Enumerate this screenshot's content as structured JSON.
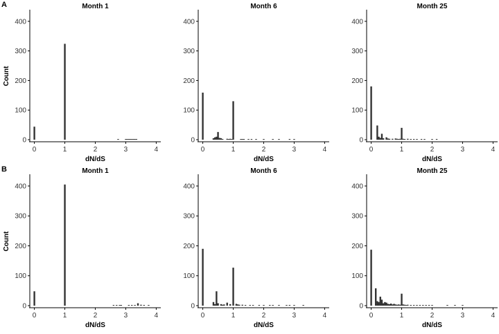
{
  "panel_labels": [
    "A",
    "B"
  ],
  "chart_data": [
    {
      "type": "bar",
      "row": "A",
      "col": 0,
      "title": "Month 1",
      "xlabel": "dN/dS",
      "ylabel": "Count",
      "xlim": [
        -0.15,
        4.15
      ],
      "ylim": [
        0,
        430
      ],
      "xticks": [
        "0",
        "1",
        "2",
        "3",
        "4"
      ],
      "yticks": [
        "0",
        "100",
        "200",
        "300",
        "400"
      ],
      "bins": [
        {
          "x": 0.0,
          "y": 44
        },
        {
          "x": 1.0,
          "y": 324
        },
        {
          "x": 2.75,
          "y": 1
        },
        {
          "x": 3.0,
          "y": 1
        },
        {
          "x": 3.05,
          "y": 1
        },
        {
          "x": 3.1,
          "y": 1
        },
        {
          "x": 3.15,
          "y": 1
        },
        {
          "x": 3.2,
          "y": 2
        },
        {
          "x": 3.25,
          "y": 2
        },
        {
          "x": 3.3,
          "y": 2
        },
        {
          "x": 3.35,
          "y": 2
        }
      ]
    },
    {
      "type": "bar",
      "row": "A",
      "col": 1,
      "title": "Month 6",
      "xlabel": "dN/dS",
      "ylabel": "",
      "xlim": [
        -0.15,
        4.15
      ],
      "ylim": [
        0,
        430
      ],
      "xticks": [
        "0",
        "1",
        "2",
        "3",
        "4"
      ],
      "yticks": [
        "0",
        "100",
        "200",
        "300",
        "400"
      ],
      "bins": [
        {
          "x": 0.0,
          "y": 159
        },
        {
          "x": 0.35,
          "y": 5
        },
        {
          "x": 0.4,
          "y": 8
        },
        {
          "x": 0.45,
          "y": 10
        },
        {
          "x": 0.5,
          "y": 26
        },
        {
          "x": 0.55,
          "y": 6
        },
        {
          "x": 0.6,
          "y": 5
        },
        {
          "x": 0.65,
          "y": 2
        },
        {
          "x": 0.8,
          "y": 3
        },
        {
          "x": 0.85,
          "y": 2
        },
        {
          "x": 0.9,
          "y": 3
        },
        {
          "x": 0.95,
          "y": 2
        },
        {
          "x": 1.0,
          "y": 130
        },
        {
          "x": 1.25,
          "y": 2
        },
        {
          "x": 1.3,
          "y": 1
        },
        {
          "x": 1.35,
          "y": 1
        },
        {
          "x": 1.5,
          "y": 1
        },
        {
          "x": 1.6,
          "y": 1
        },
        {
          "x": 1.75,
          "y": 1
        },
        {
          "x": 2.0,
          "y": 1
        },
        {
          "x": 2.3,
          "y": 1
        },
        {
          "x": 2.5,
          "y": 1
        },
        {
          "x": 2.85,
          "y": 1
        },
        {
          "x": 3.0,
          "y": 1
        }
      ]
    },
    {
      "type": "bar",
      "row": "A",
      "col": 2,
      "title": "Month 25",
      "xlabel": "dN/dS",
      "ylabel": "",
      "xlim": [
        -0.15,
        4.15
      ],
      "ylim": [
        0,
        430
      ],
      "xticks": [
        "0",
        "1",
        "2",
        "3",
        "4"
      ],
      "yticks": [
        "0",
        "100",
        "200",
        "300",
        "400"
      ],
      "bins": [
        {
          "x": 0.0,
          "y": 180
        },
        {
          "x": 0.2,
          "y": 48
        },
        {
          "x": 0.25,
          "y": 10
        },
        {
          "x": 0.3,
          "y": 6
        },
        {
          "x": 0.35,
          "y": 20
        },
        {
          "x": 0.4,
          "y": 5
        },
        {
          "x": 0.5,
          "y": 8
        },
        {
          "x": 0.55,
          "y": 4
        },
        {
          "x": 0.6,
          "y": 3
        },
        {
          "x": 0.7,
          "y": 3
        },
        {
          "x": 0.8,
          "y": 4
        },
        {
          "x": 0.85,
          "y": 3
        },
        {
          "x": 0.9,
          "y": 2
        },
        {
          "x": 0.95,
          "y": 3
        },
        {
          "x": 1.0,
          "y": 40
        },
        {
          "x": 1.05,
          "y": 3
        },
        {
          "x": 1.1,
          "y": 2
        },
        {
          "x": 1.2,
          "y": 3
        },
        {
          "x": 1.3,
          "y": 1
        },
        {
          "x": 1.4,
          "y": 2
        },
        {
          "x": 1.5,
          "y": 1
        },
        {
          "x": 1.65,
          "y": 1
        },
        {
          "x": 1.75,
          "y": 1
        },
        {
          "x": 2.0,
          "y": 1
        },
        {
          "x": 2.15,
          "y": 1
        }
      ]
    },
    {
      "type": "bar",
      "row": "B",
      "col": 0,
      "title": "Month 1",
      "xlabel": "dN/dS",
      "ylabel": "Count",
      "xlim": [
        -0.15,
        4.15
      ],
      "ylim": [
        0,
        430
      ],
      "xticks": [
        "0",
        "1",
        "2",
        "3",
        "4"
      ],
      "yticks": [
        "0",
        "100",
        "200",
        "300",
        "400"
      ],
      "bins": [
        {
          "x": 0.0,
          "y": 48
        },
        {
          "x": 1.0,
          "y": 405
        },
        {
          "x": 2.6,
          "y": 2
        },
        {
          "x": 2.7,
          "y": 2
        },
        {
          "x": 2.8,
          "y": 2
        },
        {
          "x": 2.85,
          "y": 1
        },
        {
          "x": 3.1,
          "y": 2
        },
        {
          "x": 3.2,
          "y": 2
        },
        {
          "x": 3.3,
          "y": 2
        },
        {
          "x": 3.4,
          "y": 8
        },
        {
          "x": 3.5,
          "y": 3
        },
        {
          "x": 3.6,
          "y": 2
        },
        {
          "x": 3.75,
          "y": 2
        }
      ]
    },
    {
      "type": "bar",
      "row": "B",
      "col": 1,
      "title": "Month 6",
      "xlabel": "dN/dS",
      "ylabel": "",
      "xlim": [
        -0.15,
        4.15
      ],
      "ylim": [
        0,
        430
      ],
      "xticks": [
        "0",
        "1",
        "2",
        "3",
        "4"
      ],
      "yticks": [
        "0",
        "100",
        "200",
        "300",
        "400"
      ],
      "bins": [
        {
          "x": 0.0,
          "y": 190
        },
        {
          "x": 0.35,
          "y": 12
        },
        {
          "x": 0.4,
          "y": 5
        },
        {
          "x": 0.45,
          "y": 48
        },
        {
          "x": 0.5,
          "y": 8
        },
        {
          "x": 0.6,
          "y": 5
        },
        {
          "x": 0.65,
          "y": 3
        },
        {
          "x": 0.7,
          "y": 4
        },
        {
          "x": 0.8,
          "y": 10
        },
        {
          "x": 0.9,
          "y": 5
        },
        {
          "x": 1.0,
          "y": 127
        },
        {
          "x": 1.1,
          "y": 6
        },
        {
          "x": 1.15,
          "y": 4
        },
        {
          "x": 1.2,
          "y": 3
        },
        {
          "x": 1.3,
          "y": 3
        },
        {
          "x": 1.4,
          "y": 2
        },
        {
          "x": 1.55,
          "y": 2
        },
        {
          "x": 1.65,
          "y": 2
        },
        {
          "x": 1.85,
          "y": 1
        },
        {
          "x": 2.0,
          "y": 1
        },
        {
          "x": 2.2,
          "y": 2
        },
        {
          "x": 2.3,
          "y": 2
        },
        {
          "x": 2.5,
          "y": 1
        },
        {
          "x": 2.75,
          "y": 1
        },
        {
          "x": 2.85,
          "y": 1
        },
        {
          "x": 3.0,
          "y": 1
        },
        {
          "x": 3.3,
          "y": 1
        }
      ]
    },
    {
      "type": "bar",
      "row": "B",
      "col": 2,
      "title": "Month 25",
      "xlabel": "dN/dS",
      "ylabel": "",
      "xlim": [
        -0.15,
        4.15
      ],
      "ylim": [
        0,
        430
      ],
      "xticks": [
        "0",
        "1",
        "2",
        "3",
        "4"
      ],
      "yticks": [
        "0",
        "100",
        "200",
        "300",
        "400"
      ],
      "bins": [
        {
          "x": 0.0,
          "y": 187
        },
        {
          "x": 0.15,
          "y": 58
        },
        {
          "x": 0.2,
          "y": 15
        },
        {
          "x": 0.25,
          "y": 12
        },
        {
          "x": 0.3,
          "y": 30
        },
        {
          "x": 0.35,
          "y": 20
        },
        {
          "x": 0.4,
          "y": 8
        },
        {
          "x": 0.45,
          "y": 12
        },
        {
          "x": 0.5,
          "y": 10
        },
        {
          "x": 0.55,
          "y": 6
        },
        {
          "x": 0.6,
          "y": 5
        },
        {
          "x": 0.65,
          "y": 7
        },
        {
          "x": 0.7,
          "y": 4
        },
        {
          "x": 0.75,
          "y": 6
        },
        {
          "x": 0.8,
          "y": 4
        },
        {
          "x": 0.85,
          "y": 3
        },
        {
          "x": 0.9,
          "y": 4
        },
        {
          "x": 0.95,
          "y": 3
        },
        {
          "x": 1.0,
          "y": 40
        },
        {
          "x": 1.05,
          "y": 4
        },
        {
          "x": 1.1,
          "y": 3
        },
        {
          "x": 1.15,
          "y": 2
        },
        {
          "x": 1.2,
          "y": 3
        },
        {
          "x": 1.3,
          "y": 2
        },
        {
          "x": 1.4,
          "y": 2
        },
        {
          "x": 1.5,
          "y": 2
        },
        {
          "x": 1.6,
          "y": 1
        },
        {
          "x": 1.7,
          "y": 1
        },
        {
          "x": 1.8,
          "y": 1
        },
        {
          "x": 1.9,
          "y": 1
        },
        {
          "x": 2.0,
          "y": 1
        },
        {
          "x": 2.5,
          "y": 1
        },
        {
          "x": 2.75,
          "y": 1
        },
        {
          "x": 3.0,
          "y": 1
        }
      ]
    }
  ]
}
